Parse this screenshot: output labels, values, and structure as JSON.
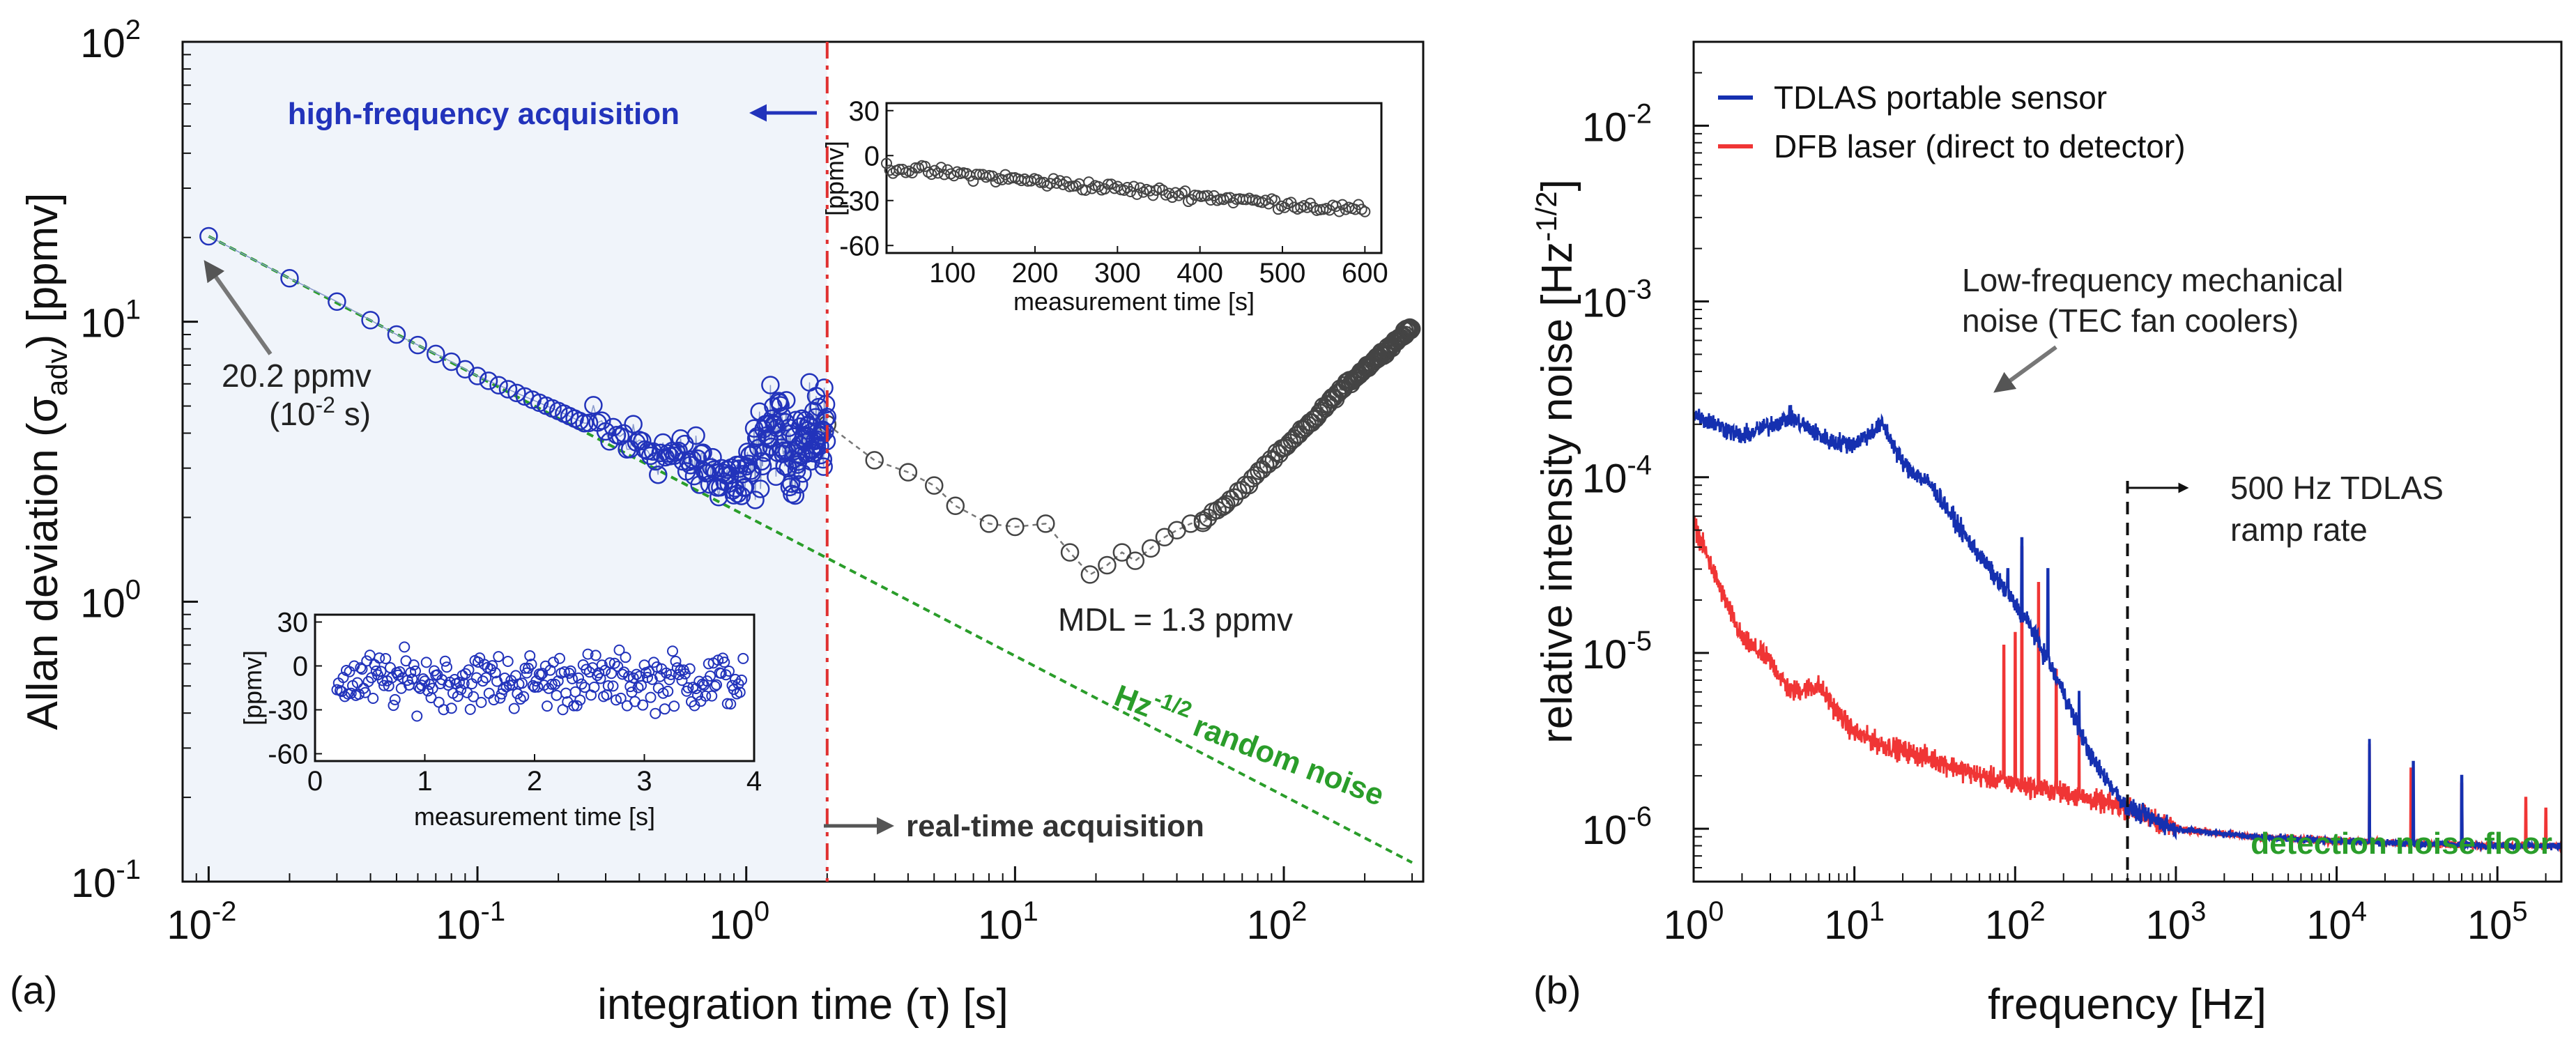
{
  "chart_data": [
    {
      "type": "scatter",
      "panel_label": "(a)",
      "xscale": "log",
      "yscale": "log",
      "xlim": [
        0.008,
        330
      ],
      "ylim": [
        0.1,
        100
      ],
      "x_ticks": [
        {
          "value": 0.01,
          "base": "10",
          "exp": "-2"
        },
        {
          "value": 0.1,
          "base": "10",
          "exp": "-1"
        },
        {
          "value": 1,
          "base": "10",
          "exp": "0"
        },
        {
          "value": 10,
          "base": "10",
          "exp": "1"
        },
        {
          "value": 100,
          "base": "10",
          "exp": "2"
        }
      ],
      "y_ticks": [
        {
          "value": 0.1,
          "base": "10",
          "exp": "-1"
        },
        {
          "value": 1,
          "base": "10",
          "exp": "0"
        },
        {
          "value": 10,
          "base": "10",
          "exp": "1"
        },
        {
          "value": 100,
          "base": "10",
          "exp": "2"
        }
      ],
      "xlabel": "integration time (τ) [s]",
      "ylabel": "Allan deviation (σ",
      "ylabel_sub": "adv",
      "ylabel_end": ") [ppmv]",
      "high_freq_region_end": 2.0,
      "series": [
        {
          "name": "Allan deviation high-frequency",
          "color": "#2233bb",
          "x_range": [
            0.01,
            2.0
          ],
          "anchor_points": [
            [
              0.01,
              20.2
            ],
            [
              0.02,
              14.3
            ],
            [
              0.03,
              11.8
            ],
            [
              0.05,
              9.0
            ],
            [
              0.08,
              7.2
            ],
            [
              0.1,
              6.4
            ],
            [
              0.2,
              4.8
            ],
            [
              0.3,
              4.0
            ],
            [
              0.5,
              3.4
            ],
            [
              0.7,
              3.0
            ],
            [
              1.0,
              2.6
            ],
            [
              1.2,
              4.2
            ],
            [
              1.5,
              3.5
            ],
            [
              2.0,
              4.3
            ]
          ]
        },
        {
          "name": "Allan deviation real-time",
          "color": "#444444",
          "points": [
            [
              2.0,
              4.3
            ],
            [
              3.0,
              3.2
            ],
            [
              4.0,
              2.9
            ],
            [
              5.0,
              2.6
            ],
            [
              6.0,
              2.2
            ],
            [
              8.0,
              1.9
            ],
            [
              10.0,
              1.85
            ],
            [
              13.0,
              1.9
            ],
            [
              16.0,
              1.5
            ],
            [
              19.0,
              1.25
            ],
            [
              22.0,
              1.35
            ],
            [
              25.0,
              1.5
            ],
            [
              28.0,
              1.4
            ],
            [
              32.0,
              1.55
            ],
            [
              36.0,
              1.7
            ],
            [
              40.0,
              1.8
            ],
            [
              45.0,
              1.9
            ],
            [
              50.0,
              1.95
            ],
            [
              60.0,
              2.2
            ],
            [
              70.0,
              2.5
            ],
            [
              80.0,
              2.9
            ],
            [
              100.0,
              3.5
            ],
            [
              130.0,
              4.5
            ],
            [
              160.0,
              5.6
            ],
            [
              200.0,
              6.8
            ],
            [
              250.0,
              8.2
            ],
            [
              300.0,
              9.6
            ]
          ]
        },
        {
          "name": "Hz-1/2 random noise",
          "color": "#2a9d2a",
          "slope": -0.5,
          "start": [
            0.01,
            20.2
          ],
          "end": [
            300,
            0.117
          ]
        }
      ],
      "annotations": {
        "start_value": "20.2 ppmv",
        "start_time": "(10",
        "start_time_exp": "-2",
        "start_time_end": " s)",
        "mdl": "MDL = 1.3 ppmv",
        "high_freq": "high-frequency acquisition",
        "real_time": "real-time acquisition",
        "noise_line_base": "Hz",
        "noise_line_exp": "-1/2",
        "noise_line_text": " random noise"
      },
      "insets": [
        {
          "name": "real-time inset",
          "xlabel": "measurement  time [s]",
          "ylabel": "[ppmv]",
          "xlim": [
            20,
            620
          ],
          "ylim": [
            -65,
            35
          ],
          "x_ticks": [
            "100",
            "200",
            "300",
            "400",
            "500",
            "600"
          ],
          "y_ticks": [
            "30",
            "0",
            "-30",
            "-60"
          ],
          "trend": {
            "x": [
              20,
              600
            ],
            "y": [
              -8,
              -37
            ],
            "jitter": 5
          }
        },
        {
          "name": "high-frequency inset",
          "xlabel": "measurement  time [s]",
          "ylabel": "[ppmv]",
          "xlim": [
            0,
            4
          ],
          "ylim": [
            -65,
            35
          ],
          "x_ticks": [
            "0",
            "1",
            "2",
            "3",
            "4"
          ],
          "y_ticks": [
            "30",
            "0",
            "-30",
            "-60"
          ],
          "trend": {
            "x": [
              0.2,
              3.9
            ],
            "y": [
              -10,
              -10
            ],
            "jitter": 28
          }
        }
      ]
    },
    {
      "type": "line",
      "panel_label": "(b)",
      "xscale": "log",
      "yscale": "log",
      "xlim": [
        1,
        250000
      ],
      "ylim": [
        5e-07,
        0.03
      ],
      "x_ticks": [
        {
          "value": 1,
          "base": "10",
          "exp": "0"
        },
        {
          "value": 10,
          "base": "10",
          "exp": "1"
        },
        {
          "value": 100,
          "base": "10",
          "exp": "2"
        },
        {
          "value": 1000,
          "base": "10",
          "exp": "3"
        },
        {
          "value": 10000,
          "base": "10",
          "exp": "4"
        },
        {
          "value": 100000,
          "base": "10",
          "exp": "5"
        }
      ],
      "y_ticks": [
        {
          "value": 1e-06,
          "base": "10",
          "exp": "-6"
        },
        {
          "value": 1e-05,
          "base": "10",
          "exp": "-5"
        },
        {
          "value": 0.0001,
          "base": "10",
          "exp": "-4"
        },
        {
          "value": 0.001,
          "base": "10",
          "exp": "-3"
        },
        {
          "value": 0.01,
          "base": "10",
          "exp": "-2"
        }
      ],
      "xlabel": "frequency [Hz]",
      "ylabel": "relative intensity noise [Hz",
      "ylabel_exp": "-1/2",
      "ylabel_end": "]",
      "legend_position": "top-left",
      "series": [
        {
          "name": "TDLAS portable sensor",
          "color": "#1530b0",
          "points": [
            [
              1,
              0.00023
            ],
            [
              2,
              0.00017
            ],
            [
              4,
              0.00022
            ],
            [
              7,
              0.00016
            ],
            [
              10,
              0.000155
            ],
            [
              15,
              0.0002
            ],
            [
              20,
              0.00012
            ],
            [
              30,
              9e-05
            ],
            [
              50,
              4.5e-05
            ],
            [
              80,
              2.5e-05
            ],
            [
              120,
              1.5e-05
            ],
            [
              200,
              6e-06
            ],
            [
              300,
              2.5e-06
            ],
            [
              500,
              1.3e-06
            ],
            [
              1000,
              1e-06
            ],
            [
              3000,
              9e-07
            ],
            [
              10000,
              8.5e-07
            ],
            [
              100000,
              8e-07
            ],
            [
              250000,
              8e-07
            ]
          ]
        },
        {
          "name": "DFB laser (direct to detector)",
          "color": "#f03535",
          "points": [
            [
              1,
              5.5e-05
            ],
            [
              1.5,
              2.2e-05
            ],
            [
              2,
              1.2e-05
            ],
            [
              3,
              9e-06
            ],
            [
              4,
              6e-06
            ],
            [
              6,
              6.5e-06
            ],
            [
              8,
              4.5e-06
            ],
            [
              10,
              3.5e-06
            ],
            [
              15,
              3e-06
            ],
            [
              30,
              2.5e-06
            ],
            [
              60,
              2e-06
            ],
            [
              100,
              1.8e-06
            ],
            [
              200,
              1.6e-06
            ],
            [
              500,
              1.3e-06
            ],
            [
              1000,
              1e-06
            ],
            [
              3000,
              9e-07
            ],
            [
              10000,
              8.5e-07
            ],
            [
              100000,
              8e-07
            ],
            [
              250000,
              8e-07
            ]
          ]
        }
      ],
      "ramp_rate_hz": 500,
      "annotations": {
        "mech_noise_line1": "Low-frequency mechanical",
        "mech_noise_line2": "noise (TEC fan coolers)",
        "ramp_line1": "500 Hz TDLAS",
        "ramp_line2": "ramp rate",
        "floor": "detection noise floor"
      }
    }
  ],
  "colors": {
    "blue_series": "#2233bb",
    "grey_series": "#444444",
    "green_line": "#2a9d2a",
    "red_series": "#f03535",
    "dark_blue_series": "#1530b0",
    "shade": "#f0f4fa"
  }
}
